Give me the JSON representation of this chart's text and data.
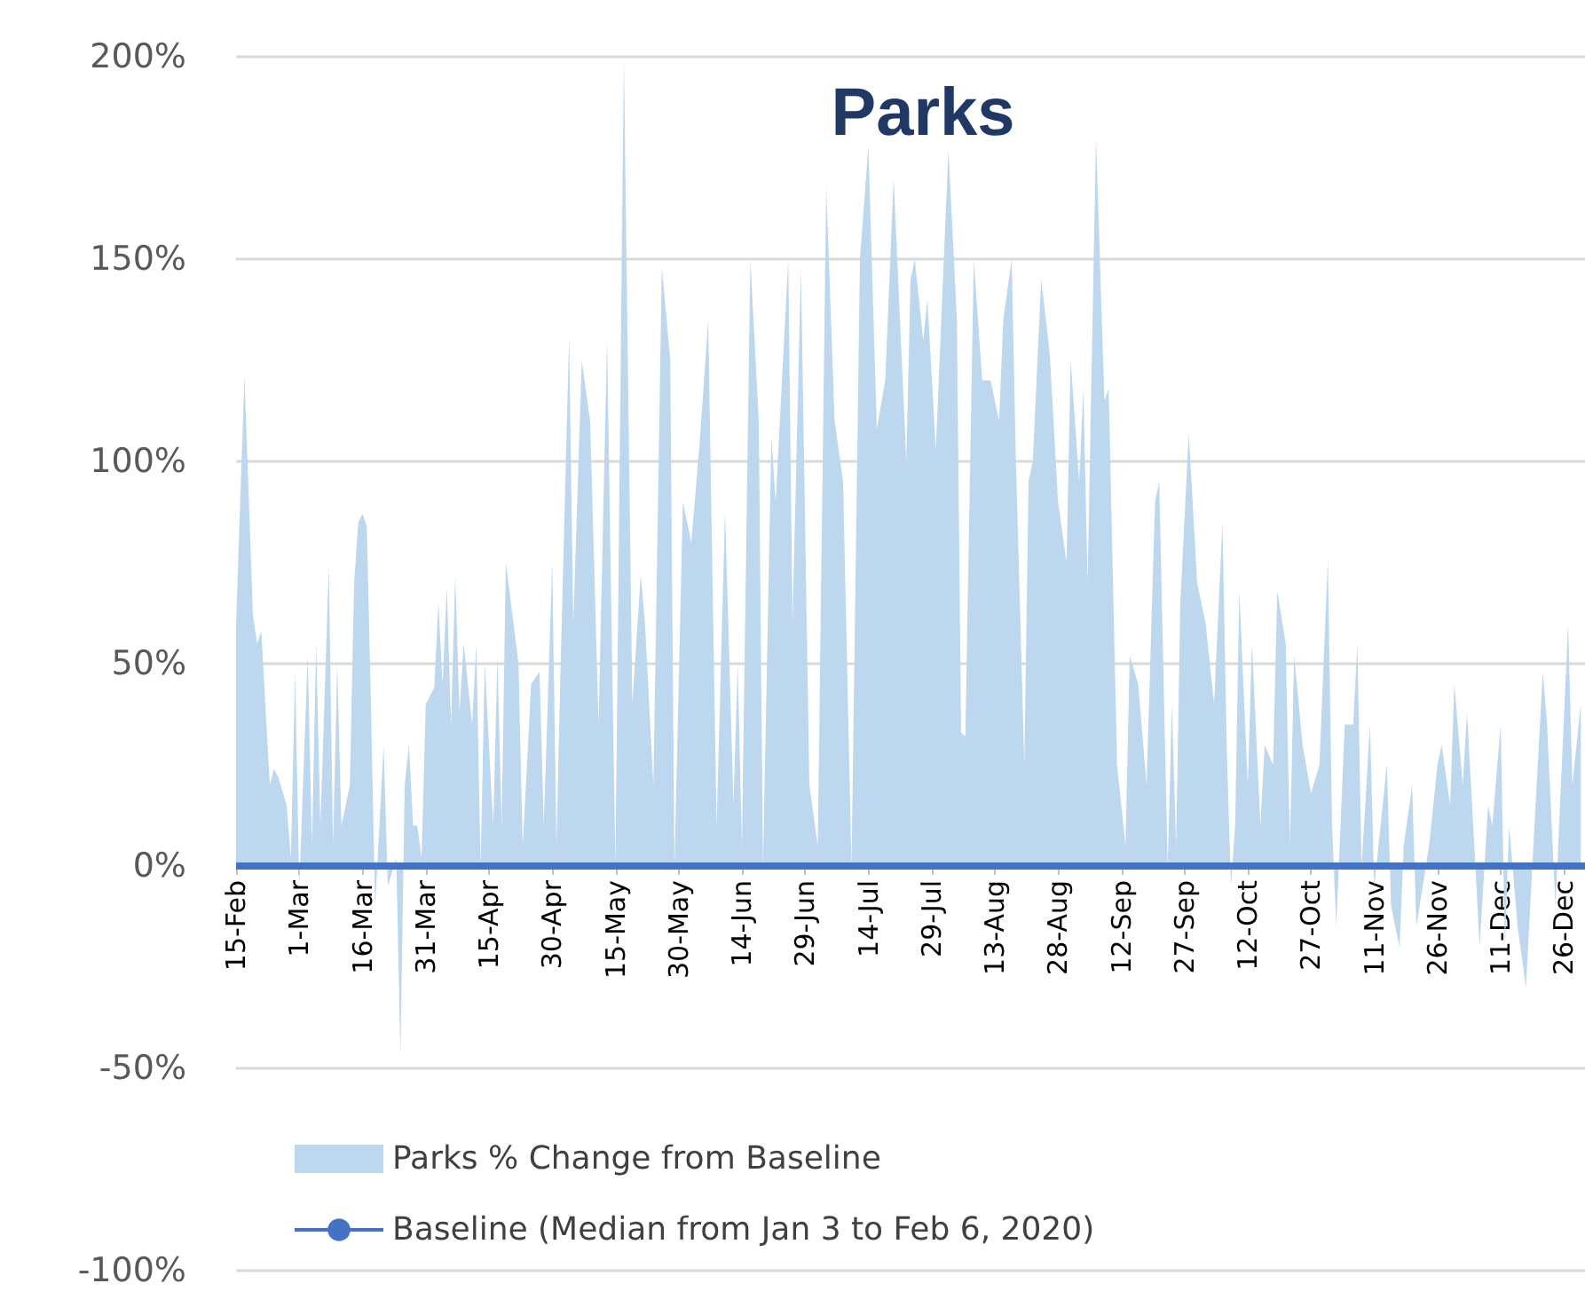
{
  "chart_data": {
    "type": "area",
    "title": "Parks",
    "x": [
      "--02-15",
      "--02-17",
      "--02-19",
      "--02-20",
      "--02-21",
      "--02-23",
      "--02-24",
      "--02-25",
      "--02-27",
      "--02-28",
      "--02-29",
      "--03-01",
      "--03-03",
      "--03-04",
      "--03-05",
      "--03-06",
      "--03-08",
      "--03-09",
      "--03-10",
      "--03-11",
      "--03-13",
      "--03-14",
      "--03-15",
      "--03-16",
      "--03-17",
      "--03-18",
      "--03-19",
      "--03-21",
      "--03-22",
      "--03-24",
      "--03-25",
      "--03-26",
      "--03-27",
      "--03-28",
      "--03-29",
      "--03-30",
      "--03-31",
      "--04-02",
      "--04-03",
      "--04-04",
      "--04-05",
      "--04-06",
      "--04-07",
      "--04-08",
      "--04-09",
      "--04-11",
      "--04-12",
      "--04-13",
      "--04-14",
      "--04-16",
      "--04-17",
      "--04-18",
      "--04-19",
      "--04-22",
      "--04-23",
      "--04-25",
      "--04-27",
      "--04-28",
      "--04-30",
      "--05-01",
      "--05-02",
      "--05-04",
      "--05-05",
      "--05-07",
      "--05-09",
      "--05-11",
      "--05-13",
      "--05-15",
      "--05-17",
      "--05-19",
      "--05-21",
      "--05-22",
      "--05-24",
      "--05-26",
      "--05-28",
      "--05-29",
      "--05-31",
      "--06-02",
      "--06-04",
      "--06-06",
      "--06-08",
      "--06-10",
      "--06-12",
      "--06-13",
      "--06-14",
      "--06-16",
      "--06-18",
      "--06-19",
      "--06-21",
      "--06-22",
      "--06-25",
      "--06-26",
      "--06-28",
      "--06-30",
      "--07-02",
      "--07-04",
      "--07-06",
      "--07-08",
      "--07-10",
      "--07-12",
      "--07-14",
      "--07-16",
      "--07-18",
      "--07-20",
      "--07-23",
      "--07-24",
      "--07-25",
      "--07-27",
      "--07-28",
      "--07-30",
      "--08-02",
      "--08-04",
      "--08-05",
      "--08-06",
      "--08-08",
      "--08-10",
      "--08-12",
      "--08-14",
      "--08-15",
      "--08-17",
      "--08-18",
      "--08-20",
      "--08-21",
      "--08-22",
      "--08-24",
      "--08-26",
      "--08-28",
      "--08-30",
      "--08-31",
      "--09-02",
      "--09-03",
      "--09-04",
      "--09-06",
      "--09-08",
      "--09-09",
      "--09-11",
      "--09-13",
      "--09-14",
      "--09-16",
      "--09-18",
      "--09-20",
      "--09-21",
      "--09-23",
      "--09-24",
      "--09-25",
      "--09-26",
      "--09-28",
      "--09-30",
      "--10-02",
      "--10-04",
      "--10-06",
      "--10-07",
      "--10-08",
      "--10-09",
      "--10-10",
      "--10-12",
      "--10-13",
      "--10-15",
      "--10-16",
      "--10-18",
      "--10-19",
      "--10-21",
      "--10-22",
      "--10-23",
      "--10-25",
      "--10-27",
      "--10-29",
      "--10-31",
      "--11-01",
      "--11-02",
      "--11-04",
      "--11-06",
      "--11-07",
      "--11-08",
      "--11-10",
      "--11-11",
      "--11-12",
      "--11-14",
      "--11-15",
      "--11-17",
      "--11-18",
      "--11-20",
      "--11-21",
      "--11-24",
      "--11-26",
      "--11-27",
      "--11-29",
      "--11-30",
      "--12-02",
      "--12-03",
      "--12-05",
      "--12-06",
      "--12-08",
      "--12-09",
      "--12-11",
      "--12-12",
      "--12-13",
      "--12-15",
      "--12-17",
      "--12-19",
      "--12-21",
      "--12-22",
      "--12-24",
      "--12-27",
      "--12-28",
      "--12-30"
    ],
    "series": [
      {
        "name": "Parks % Change from Baseline",
        "color": "#bdd7ee",
        "values": [
          60,
          121,
          62,
          55,
          58,
          20,
          24,
          22,
          15,
          2,
          48,
          -5,
          52,
          5,
          55,
          10,
          74,
          5,
          50,
          10,
          20,
          70,
          85,
          87,
          84,
          40,
          -10,
          30,
          -5,
          2,
          -47,
          20,
          30,
          10,
          10,
          2,
          40,
          44,
          65,
          45,
          69,
          35,
          72,
          38,
          55,
          35,
          55,
          0,
          50,
          10,
          52,
          10,
          75,
          50,
          5,
          45,
          48,
          10,
          75,
          5,
          50,
          131,
          60,
          125,
          110,
          35,
          130,
          0,
          200,
          40,
          72,
          60,
          20,
          148,
          125,
          0,
          90,
          80,
          105,
          135,
          10,
          88,
          15,
          50,
          5,
          150,
          110,
          0,
          106,
          90,
          150,
          60,
          148,
          20,
          5,
          168,
          110,
          95,
          0,
          150,
          178,
          108,
          120,
          170,
          100,
          145,
          150,
          130,
          140,
          103,
          177,
          135,
          33,
          32,
          150,
          120,
          120,
          110,
          135,
          150,
          100,
          25,
          95,
          100,
          145,
          127,
          90,
          75,
          125,
          95,
          118,
          70,
          180,
          115,
          118,
          25,
          5,
          52,
          45,
          20,
          90,
          95,
          0,
          40,
          5,
          65,
          107,
          70,
          60,
          40,
          85,
          30,
          -5,
          10,
          68,
          20,
          55,
          10,
          30,
          25,
          68,
          55,
          5,
          52,
          30,
          18,
          25,
          76,
          10,
          -15,
          35,
          35,
          55,
          0,
          35,
          -5,
          5,
          25,
          -10,
          -20,
          5,
          20,
          -15,
          5,
          25,
          30,
          15,
          45,
          20,
          38,
          0,
          -20,
          15,
          10,
          35,
          -20,
          10,
          -15,
          -30,
          10,
          48,
          35,
          -10,
          60,
          20,
          40
        ]
      },
      {
        "name": "Baseline (Median from Jan 3 to Feb 6, 2020)",
        "type": "line",
        "color": "#4472c4",
        "x": [
          "--02-15",
          "--12-31"
        ],
        "values": [
          0,
          0
        ]
      }
    ],
    "xlim": [
      "--02-15",
      "--12-31"
    ],
    "xticks": [
      {
        "value": "--02-15",
        "label": "15-Feb"
      },
      {
        "value": "--03-01",
        "label": "1-Mar"
      },
      {
        "value": "--03-16",
        "label": "16-Mar"
      },
      {
        "value": "--03-31",
        "label": "31-Mar"
      },
      {
        "value": "--04-15",
        "label": "15-Apr"
      },
      {
        "value": "--04-30",
        "label": "30-Apr"
      },
      {
        "value": "--05-15",
        "label": "15-May"
      },
      {
        "value": "--05-30",
        "label": "30-May"
      },
      {
        "value": "--06-14",
        "label": "14-Jun"
      },
      {
        "value": "--06-29",
        "label": "29-Jun"
      },
      {
        "value": "--07-14",
        "label": "14-Jul"
      },
      {
        "value": "--07-29",
        "label": "29-Jul"
      },
      {
        "value": "--08-13",
        "label": "13-Aug"
      },
      {
        "value": "--08-28",
        "label": "28-Aug"
      },
      {
        "value": "--09-12",
        "label": "12-Sep"
      },
      {
        "value": "--09-27",
        "label": "27-Sep"
      },
      {
        "value": "--10-12",
        "label": "12-Oct"
      },
      {
        "value": "--10-27",
        "label": "27-Oct"
      },
      {
        "value": "--11-11",
        "label": "11-Nov"
      },
      {
        "value": "--11-26",
        "label": "26-Nov"
      },
      {
        "value": "--12-11",
        "label": "11-Dec"
      },
      {
        "value": "--12-26",
        "label": "26-Dec"
      }
    ],
    "ylim": [
      -100,
      200
    ],
    "yticks": [
      {
        "value": -100,
        "label": "-100%"
      },
      {
        "value": -50,
        "label": "-50%"
      },
      {
        "value": 0,
        "label": "0%"
      },
      {
        "value": 50,
        "label": "50%"
      },
      {
        "value": 100,
        "label": "100%"
      },
      {
        "value": 150,
        "label": "150%"
      },
      {
        "value": 200,
        "label": "200%"
      }
    ],
    "grid": "y",
    "legend": "bottom left"
  }
}
